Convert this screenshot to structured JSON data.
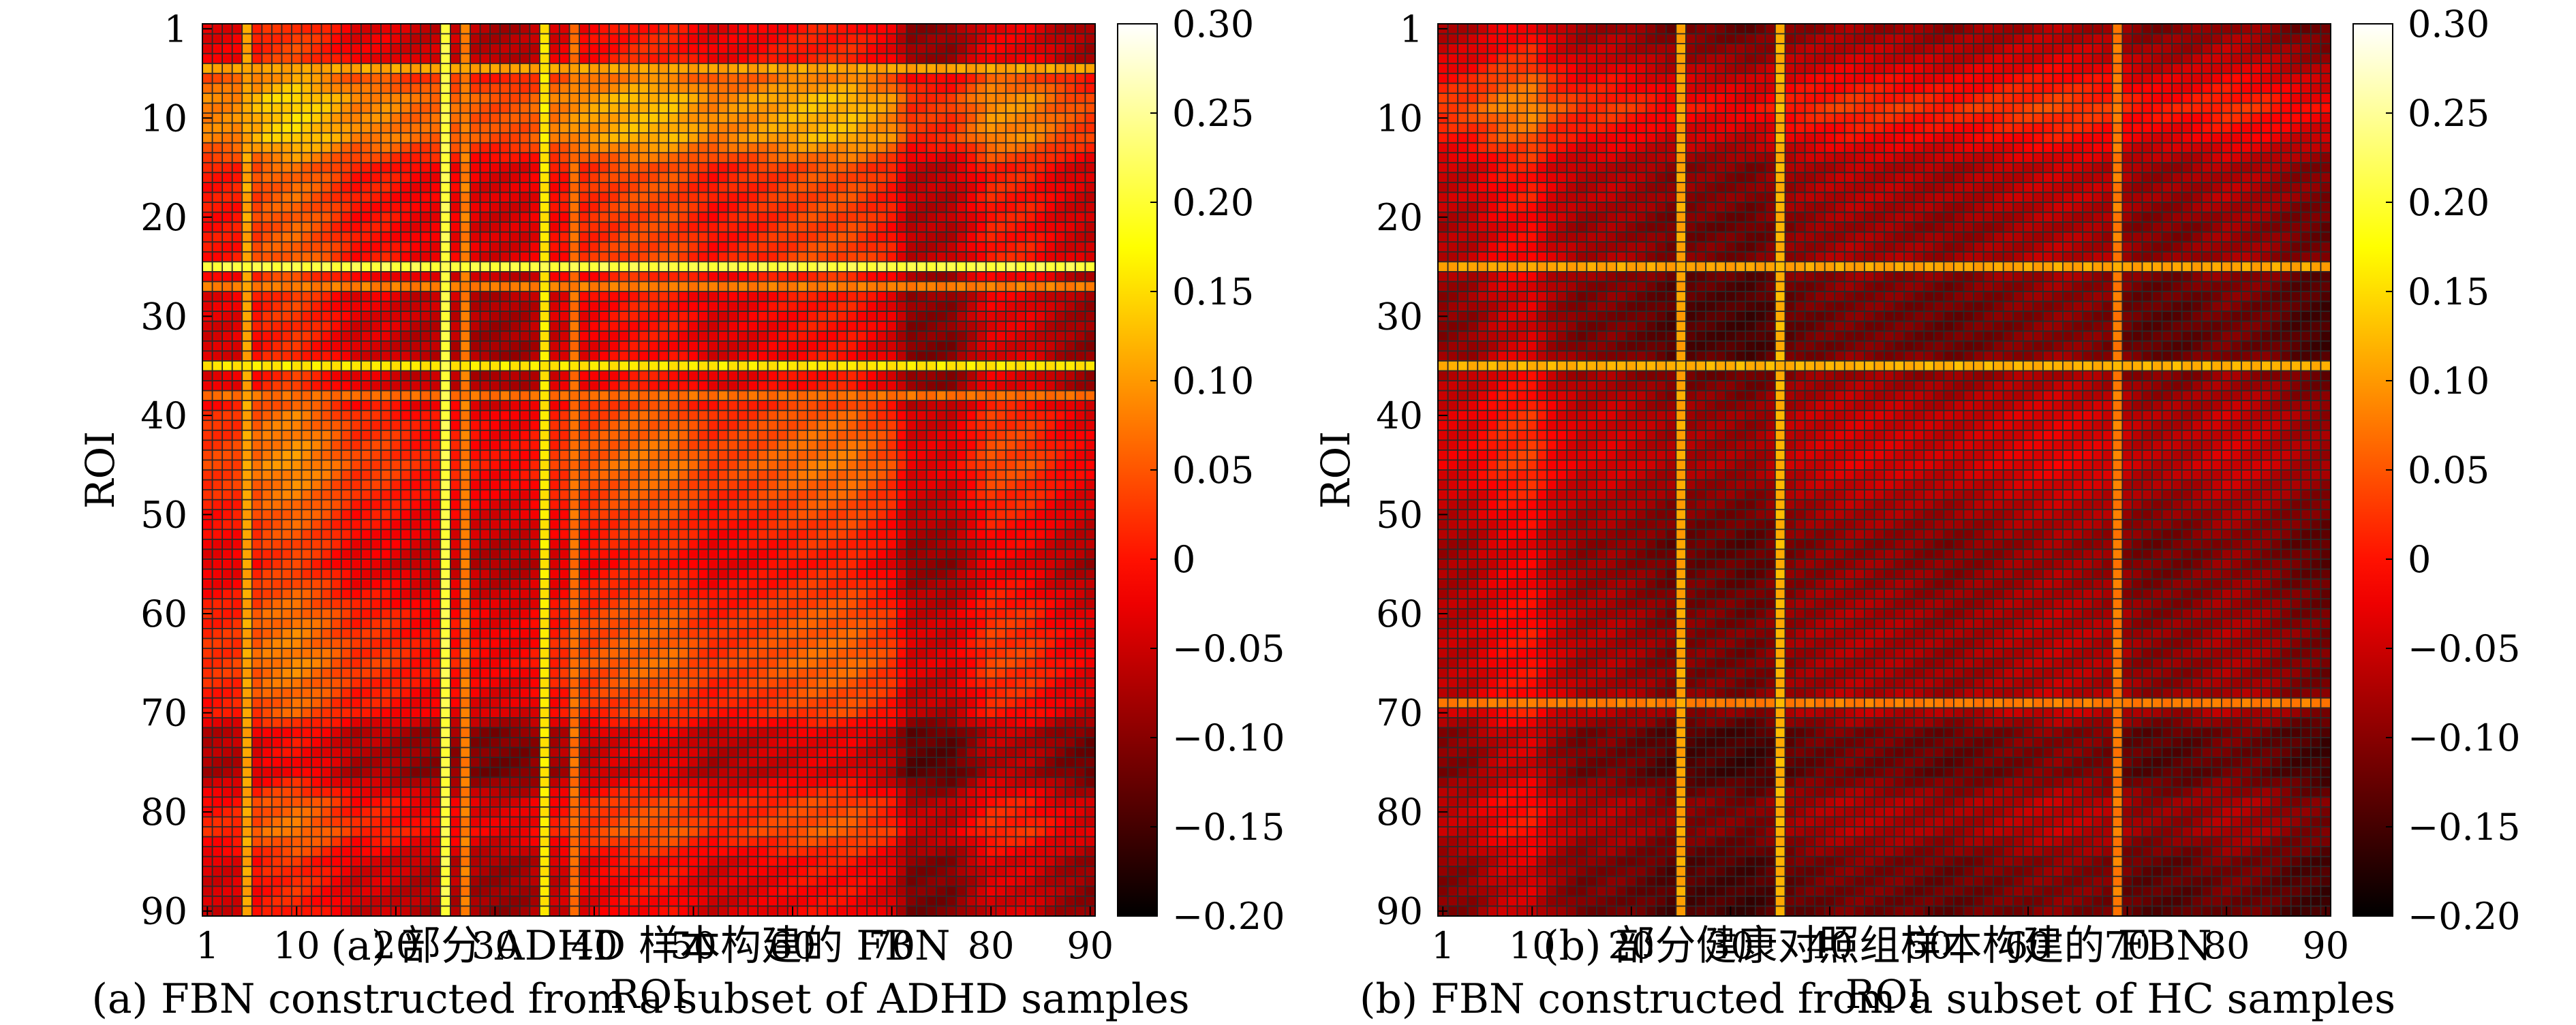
{
  "chart_data": [
    {
      "type": "heatmap",
      "panel": "a",
      "title": "",
      "xlabel": "ROI",
      "ylabel": "ROI",
      "size": 90,
      "x_ticks": [
        1,
        10,
        20,
        30,
        40,
        50,
        60,
        70,
        80,
        90
      ],
      "y_ticks": [
        1,
        10,
        20,
        30,
        40,
        50,
        60,
        70,
        80,
        90
      ],
      "colorbar": {
        "range": [
          -0.2,
          0.3
        ],
        "ticks": [
          0.3,
          0.25,
          0.2,
          0.15,
          0.1,
          0.05,
          0,
          -0.05,
          -0.1,
          -0.15,
          -0.2
        ],
        "tick_labels": [
          "0.30",
          "0.25",
          "0.20",
          "0.15",
          "0.10",
          "0.05",
          "0",
          "−0.05",
          "−0.10",
          "−0.15",
          "−0.20"
        ],
        "colormap": "hot"
      },
      "bright_rois": [
        {
          "roi": 25,
          "strength": 0.22
        },
        {
          "roi": 35,
          "strength": 0.17
        },
        {
          "roi": 5,
          "strength": 0.12
        },
        {
          "roi": 27,
          "strength": 0.09
        },
        {
          "roi": 38,
          "strength": 0.08
        }
      ],
      "row_profile": [
        [
          1,
          -0.06
        ],
        [
          4,
          -0.04
        ],
        [
          5,
          0.06
        ],
        [
          8,
          0.18
        ],
        [
          12,
          0.17
        ],
        [
          15,
          0.02
        ],
        [
          18,
          0.01
        ],
        [
          21,
          0.0
        ],
        [
          24,
          0.01
        ],
        [
          27,
          -0.05
        ],
        [
          30,
          -0.06
        ],
        [
          33,
          -0.08
        ],
        [
          37,
          -0.06
        ],
        [
          40,
          0.04
        ],
        [
          45,
          0.08
        ],
        [
          50,
          0.01
        ],
        [
          55,
          -0.06
        ],
        [
          60,
          0.03
        ],
        [
          65,
          0.06
        ],
        [
          70,
          0.0
        ],
        [
          72,
          -0.12
        ],
        [
          76,
          -0.14
        ],
        [
          79,
          0.0
        ],
        [
          82,
          0.04
        ],
        [
          85,
          -0.07
        ],
        [
          90,
          -0.09
        ]
      ],
      "col_profile": [
        [
          1,
          0.02
        ],
        [
          4,
          0.03
        ],
        [
          7,
          0.12
        ],
        [
          10,
          0.15
        ],
        [
          13,
          0.1
        ],
        [
          16,
          0.02
        ],
        [
          19,
          0.03
        ],
        [
          22,
          -0.02
        ],
        [
          26,
          -0.02
        ],
        [
          30,
          -0.06
        ],
        [
          33,
          -0.05
        ],
        [
          38,
          0.04
        ],
        [
          44,
          0.1
        ],
        [
          48,
          0.1
        ],
        [
          52,
          0.02
        ],
        [
          56,
          0.05
        ],
        [
          62,
          0.1
        ],
        [
          66,
          0.1
        ],
        [
          70,
          0.03
        ],
        [
          72,
          -0.1
        ],
        [
          76,
          -0.1
        ],
        [
          80,
          0.04
        ],
        [
          84,
          0.03
        ],
        [
          87,
          -0.04
        ],
        [
          90,
          -0.08
        ]
      ],
      "caption_cn": "(a) 部分 ADHD 样本构建的 FBN",
      "caption_en": "(a) FBN constructed from a subset of ADHD samples"
    },
    {
      "type": "heatmap",
      "panel": "b",
      "title": "",
      "xlabel": "ROI",
      "ylabel": "ROI",
      "size": 90,
      "x_ticks": [
        1,
        10,
        20,
        30,
        40,
        50,
        60,
        70,
        80,
        90
      ],
      "y_ticks": [
        1,
        10,
        20,
        30,
        40,
        50,
        60,
        70,
        80,
        90
      ],
      "colorbar": {
        "range": [
          -0.2,
          0.3
        ],
        "ticks": [
          0.3,
          0.25,
          0.2,
          0.15,
          0.1,
          0.05,
          0,
          -0.05,
          -0.1,
          -0.15,
          -0.2
        ],
        "tick_labels": [
          "0.30",
          "0.25",
          "0.20",
          "0.15",
          "0.10",
          "0.05",
          "0",
          "−0.05",
          "−0.10",
          "−0.15",
          "−0.20"
        ],
        "colormap": "hot"
      },
      "bright_rois": [
        {
          "roi": 25,
          "strength": 0.12
        },
        {
          "roi": 35,
          "strength": 0.13
        },
        {
          "roi": 69,
          "strength": 0.09
        }
      ],
      "row_profile": [
        [
          1,
          -0.1
        ],
        [
          4,
          -0.03
        ],
        [
          6,
          0.04
        ],
        [
          9,
          0.12
        ],
        [
          12,
          0.04
        ],
        [
          15,
          -0.06
        ],
        [
          18,
          -0.06
        ],
        [
          21,
          -0.1
        ],
        [
          24,
          -0.08
        ],
        [
          27,
          -0.13
        ],
        [
          30,
          -0.15
        ],
        [
          33,
          -0.15
        ],
        [
          37,
          -0.08
        ],
        [
          40,
          -0.03
        ],
        [
          45,
          -0.01
        ],
        [
          49,
          -0.07
        ],
        [
          53,
          -0.12
        ],
        [
          57,
          -0.1
        ],
        [
          62,
          -0.07
        ],
        [
          66,
          -0.08
        ],
        [
          70,
          -0.06
        ],
        [
          72,
          -0.15
        ],
        [
          76,
          -0.16
        ],
        [
          79,
          -0.07
        ],
        [
          82,
          -0.07
        ],
        [
          85,
          -0.14
        ],
        [
          90,
          -0.16
        ]
      ],
      "col_profile": [
        [
          1,
          -0.02
        ],
        [
          4,
          0.0
        ],
        [
          7,
          0.08
        ],
        [
          10,
          0.1
        ],
        [
          12,
          0.02
        ],
        [
          15,
          -0.04
        ],
        [
          18,
          -0.03
        ],
        [
          21,
          -0.06
        ],
        [
          24,
          -0.1
        ],
        [
          28,
          -0.1
        ],
        [
          32,
          -0.12
        ],
        [
          37,
          -0.06
        ],
        [
          42,
          -0.03
        ],
        [
          47,
          -0.04
        ],
        [
          52,
          -0.06
        ],
        [
          58,
          -0.03
        ],
        [
          63,
          -0.01
        ],
        [
          67,
          -0.03
        ],
        [
          72,
          -0.08
        ],
        [
          76,
          -0.08
        ],
        [
          80,
          -0.04
        ],
        [
          84,
          -0.06
        ],
        [
          87,
          -0.1
        ],
        [
          90,
          -0.12
        ]
      ],
      "caption_cn": "(b) 部分健康对照组样本构建的 FBN",
      "caption_en": "(b) FBN constructed from a subset of HC samples"
    }
  ]
}
